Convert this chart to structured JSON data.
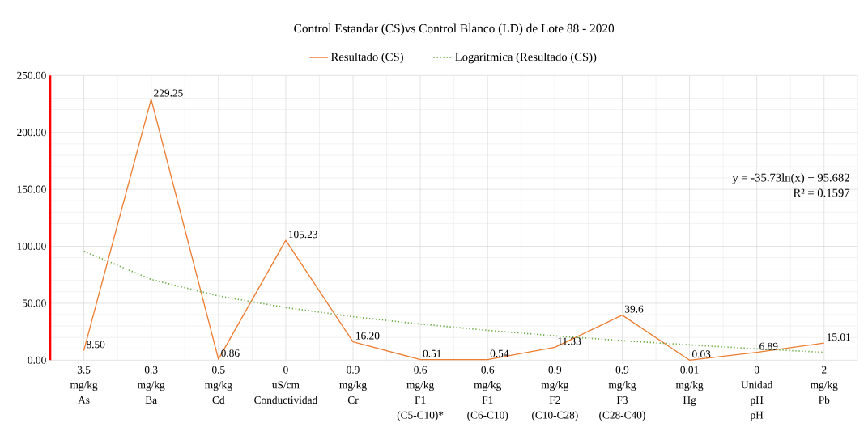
{
  "chart_data": {
    "type": "line",
    "title": "Control Estandar (CS)vs Control Blanco (LD) de Lote 88 - 2020",
    "categories": [
      "3.5 mg/kg As",
      "0.3 mg/kg Ba",
      "0.5 mg/kg Cd",
      "0 uS/cm Conductividad",
      "0.9 mg/kg Cr",
      "0.6 mg/kg F1 (C5-C10)*",
      "0.6 mg/kg F1 (C6-C10)",
      "0.9 mg/kg F2 (C10-C28)",
      "0.9 mg/kg F3 (C28-C40)",
      "0.01 mg/kg Hg",
      "0 Unidad pH pH",
      "2 mg/kg Pb"
    ],
    "series": [
      {
        "name": "Resultado (CS)",
        "color": "#ed7d31",
        "line_style": "solid",
        "values": [
          8.5,
          229.25,
          0.86,
          105.23,
          16.2,
          0.51,
          0.54,
          11.33,
          39.6,
          0.03,
          6.89,
          15.01
        ],
        "value_labels": [
          "8.50",
          "229.25",
          "0.86",
          "105.23",
          "16.20",
          "0.51",
          "0.54",
          "11.33",
          "39.6",
          "0.03",
          "6.89",
          "15.01"
        ]
      },
      {
        "name": "Logarítmica (Resultado (CS))",
        "color": "#70ad47",
        "line_style": "dotted",
        "values": [
          95.7,
          70.9,
          56.4,
          46.2,
          38.2,
          31.7,
          26.2,
          21.4,
          17.2,
          13.4,
          10.0,
          6.9
        ]
      }
    ],
    "ylim": [
      0,
      250
    ],
    "yticks": [
      {
        "value": 0,
        "label": "0.00"
      },
      {
        "value": 50,
        "label": "50.00"
      },
      {
        "value": 100,
        "label": "100.00"
      },
      {
        "value": 150,
        "label": "150.00"
      },
      {
        "value": 200,
        "label": "200.00"
      },
      {
        "value": 250,
        "label": "250.00"
      }
    ],
    "grid": true,
    "legend": "top",
    "marker": "none",
    "annotations": [
      "y = -35.73ln(x) + 95.682",
      "R² = 0.1597"
    ]
  }
}
